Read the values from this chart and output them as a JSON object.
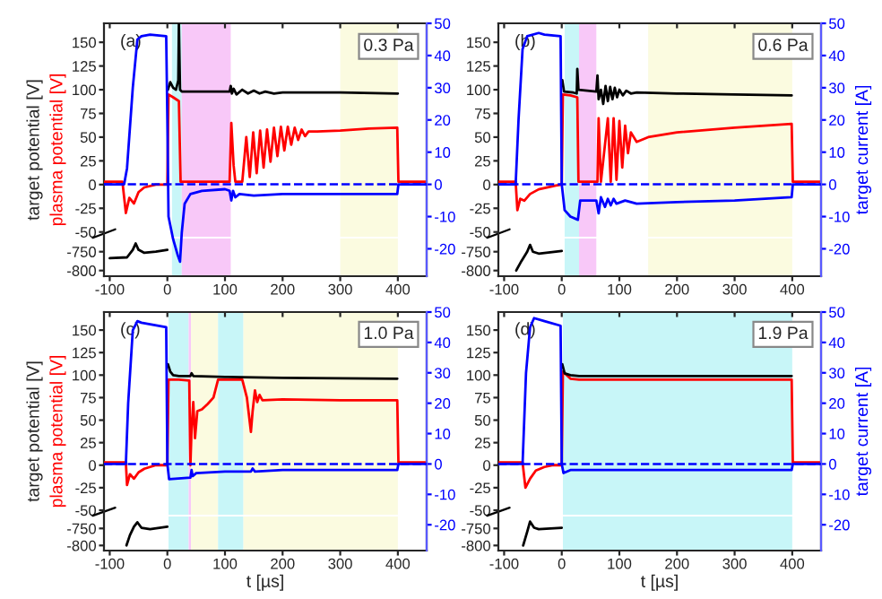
{
  "chart_data": [
    {
      "type": "line",
      "xlim": [
        -110,
        450
      ],
      "xticks": [
        -100,
        0,
        100,
        200,
        300,
        400
      ],
      "ylim": [
        -55,
        170
      ],
      "yticks": [
        -50,
        -25,
        0,
        25,
        50,
        75,
        100,
        125,
        150
      ],
      "y2lim": [
        -28.5,
        50
      ],
      "y2ticks": [
        -20,
        -10,
        0,
        10,
        20,
        30,
        40,
        50
      ],
      "tick_labels": "y",
      "ylabel": "target potential [V]",
      "annotations": [
        "(a)",
        "0.3 Pa",
        "plasma potential [V]"
      ],
      "ref_lines": [
        {
          "axis": "y2",
          "value": 0,
          "color": "#0000ff",
          "line_style": "dashed"
        }
      ],
      "bands": [
        {
          "axis": "x",
          "from": 8,
          "to": 25,
          "color": "#c8f6f8"
        },
        {
          "axis": "x",
          "from": 25,
          "to": 110,
          "color": "#f8c8f8"
        },
        {
          "axis": "x",
          "from": 300,
          "to": 400,
          "color": "#fbfbe0"
        }
      ],
      "series": [
        {
          "color": "#ff0000",
          "x": [
            -110,
            -78,
            -72,
            -66,
            -58,
            -50,
            -40,
            -20,
            0,
            2,
            10,
            20,
            23,
            60,
            108,
            111,
            115,
            118,
            130,
            137,
            143,
            149,
            155,
            161,
            167,
            173,
            179,
            185,
            191,
            197,
            203,
            209,
            215,
            221,
            227,
            233,
            239,
            245,
            260,
            300,
            350,
            399,
            401,
            450
          ],
          "values": [
            3,
            3,
            -30,
            -14,
            -20,
            -8,
            -3,
            0,
            0,
            95,
            92,
            88,
            3,
            3,
            3,
            65,
            20,
            3,
            3,
            50,
            8,
            55,
            12,
            57,
            18,
            58,
            24,
            60,
            30,
            61,
            36,
            61,
            42,
            60,
            47,
            58,
            51,
            56,
            56,
            57,
            59,
            60,
            3,
            3
          ]
        },
        {
          "color": "#000000",
          "x": [
            1,
            5,
            10,
            15,
            19,
            20,
            22,
            25,
            60,
            108,
            110,
            112,
            115,
            120,
            130,
            140,
            150,
            160,
            170,
            185,
            200,
            250,
            300,
            400
          ],
          "values": [
            100,
            108,
            102,
            100,
            110,
            170,
            100,
            98,
            98,
            98,
            104,
            96,
            101,
            95,
            100,
            96,
            99,
            96,
            98,
            96,
            97,
            97,
            97,
            96
          ]
        },
        {
          "color": "#0000ff",
          "axis": "y2",
          "x": [
            -110,
            -75,
            -70,
            -60,
            -52,
            -45,
            -30,
            -2,
            0,
            2,
            10,
            18,
            22,
            25,
            30,
            40,
            60,
            100,
            108,
            111,
            114,
            118,
            125,
            150,
            200,
            300,
            399,
            401,
            450
          ],
          "values": [
            0,
            0,
            5,
            30,
            45,
            46,
            46.5,
            46,
            20,
            -10,
            -17,
            -22,
            -24,
            -15,
            -6,
            -3,
            -2,
            -1.5,
            -2,
            -5,
            -2,
            -4,
            -3,
            -3.5,
            -3,
            -3,
            -3,
            0,
            0
          ]
        }
      ]
    },
    {
      "type": "line",
      "xlim": [
        -110,
        450
      ],
      "xticks": [
        -100,
        0,
        100,
        200,
        300,
        400
      ],
      "ylim": [
        -815,
        -715
      ],
      "yticks": [
        -800,
        -750
      ],
      "bands": [
        {
          "axis": "x",
          "from": 8,
          "to": 25,
          "color": "#c8f6f8"
        },
        {
          "axis": "x",
          "from": 25,
          "to": 110,
          "color": "#f8c8f8"
        },
        {
          "axis": "x",
          "from": 300,
          "to": 400,
          "color": "#fbfbe0"
        }
      ],
      "series": [
        {
          "color": "#000000",
          "x": [
            -100,
            -70,
            -60,
            -55,
            -50,
            -40,
            -20,
            0
          ],
          "values": [
            -767,
            -765,
            -745,
            -728,
            -745,
            -753,
            -750,
            -745
          ]
        }
      ]
    },
    {
      "type": "line",
      "xlim": [
        -110,
        450
      ],
      "xticks": [
        -100,
        0,
        100,
        200,
        300,
        400
      ],
      "ylim": [
        -55,
        170
      ],
      "yticks": [
        -50,
        -25,
        0,
        25,
        50,
        75,
        100,
        125,
        150
      ],
      "y2lim": [
        -28.5,
        50
      ],
      "y2ticks": [
        -20,
        -10,
        0,
        10,
        20,
        30,
        40,
        50
      ],
      "tick_labels": "y",
      "y2label": "target current [A]",
      "annotations": [
        "(b)",
        "0.6 Pa"
      ],
      "ref_lines": [
        {
          "axis": "y2",
          "value": 0,
          "color": "#0000ff",
          "line_style": "dashed"
        }
      ],
      "bands": [
        {
          "axis": "x",
          "from": 5,
          "to": 30,
          "color": "#c8f6f8"
        },
        {
          "axis": "x",
          "from": 30,
          "to": 60,
          "color": "#f8c8f8"
        },
        {
          "axis": "x",
          "from": 150,
          "to": 400,
          "color": "#fbfbe0"
        }
      ],
      "series": [
        {
          "color": "#ff0000",
          "x": [
            -110,
            -80,
            -77,
            -72,
            -65,
            -55,
            -40,
            -10,
            0,
            2,
            15,
            27,
            29,
            62,
            64,
            68,
            80,
            85,
            90,
            95,
            100,
            105,
            110,
            115,
            120,
            130,
            150,
            200,
            300,
            399,
            401,
            450
          ],
          "values": [
            3,
            3,
            -27,
            -15,
            -17,
            -10,
            -5,
            -1,
            0,
            95,
            94,
            92,
            3,
            3,
            70,
            3,
            70,
            3,
            70,
            5,
            67,
            18,
            62,
            33,
            55,
            45,
            50,
            55,
            60,
            64,
            3,
            3
          ]
        },
        {
          "color": "#000000",
          "x": [
            1,
            4,
            20,
            26,
            27,
            29,
            60,
            62,
            64,
            68,
            72,
            76,
            80,
            84,
            88,
            92,
            96,
            100,
            106,
            112,
            120,
            130,
            200,
            300,
            399
          ],
          "values": [
            110,
            98,
            97,
            96,
            122,
            100,
            98,
            115,
            90,
            100,
            85,
            104,
            88,
            103,
            90,
            102,
            92,
            100,
            94,
            99,
            96,
            97,
            96,
            95,
            94
          ]
        },
        {
          "color": "#0000ff",
          "axis": "y2",
          "x": [
            -110,
            -80,
            -75,
            -68,
            -60,
            -40,
            -30,
            -2,
            0,
            5,
            15,
            28,
            32,
            60,
            64,
            68,
            75,
            80,
            85,
            90,
            95,
            110,
            130,
            200,
            300,
            399,
            401,
            450
          ],
          "values": [
            0,
            0,
            20,
            42,
            46,
            47,
            46.5,
            46,
            0,
            -8,
            -10,
            -11,
            -5,
            -5,
            -9,
            -4,
            -7,
            -4.5,
            -6.5,
            -4.5,
            -6,
            -5,
            -6,
            -5.5,
            -5,
            -4,
            0,
            0
          ]
        }
      ]
    },
    {
      "type": "line",
      "xlim": [
        -110,
        450
      ],
      "xticks": [
        -100,
        0,
        100,
        200,
        300,
        400
      ],
      "ylim": [
        -815,
        -715
      ],
      "yticks": [
        -800,
        -750
      ],
      "bands": [
        {
          "axis": "x",
          "from": 5,
          "to": 30,
          "color": "#c8f6f8"
        },
        {
          "axis": "x",
          "from": 30,
          "to": 60,
          "color": "#f8c8f8"
        },
        {
          "axis": "x",
          "from": 150,
          "to": 400,
          "color": "#fbfbe0"
        }
      ],
      "series": [
        {
          "color": "#000000",
          "x": [
            -79,
            -70,
            -60,
            -55,
            -50,
            -40,
            0
          ],
          "values": [
            -800,
            -775,
            -750,
            -732,
            -750,
            -755,
            -748
          ]
        }
      ]
    },
    {
      "type": "line",
      "xlim": [
        -110,
        450
      ],
      "xticks": [
        -100,
        0,
        100,
        200,
        300,
        400
      ],
      "ylim": [
        -55,
        170
      ],
      "yticks": [
        -50,
        -25,
        0,
        25,
        50,
        75,
        100,
        125,
        150
      ],
      "y2lim": [
        -28.5,
        50
      ],
      "y2ticks": [
        -20,
        -10,
        0,
        10,
        20,
        30,
        40,
        50
      ],
      "tick_labels": "y",
      "ylabel": "target potential [V]",
      "annotations": [
        "(c)",
        "1.0 Pa",
        "plasma potential [V]"
      ],
      "ref_lines": [
        {
          "axis": "y2",
          "value": 0,
          "color": "#0000ff",
          "line_style": "dashed"
        }
      ],
      "bands": [
        {
          "axis": "x",
          "from": 2,
          "to": 37,
          "color": "#c8f6f8"
        },
        {
          "axis": "x",
          "from": 37,
          "to": 41,
          "color": "#f8c8f8"
        },
        {
          "axis": "x",
          "from": 41,
          "to": 88,
          "color": "#fbfbe0"
        },
        {
          "axis": "x",
          "from": 88,
          "to": 132,
          "color": "#c8f6f8"
        },
        {
          "axis": "x",
          "from": 132,
          "to": 400,
          "color": "#fbfbe0"
        }
      ],
      "series": [
        {
          "color": "#ff0000",
          "x": [
            -110,
            -72,
            -70,
            -65,
            -58,
            -50,
            -40,
            -20,
            0,
            2,
            20,
            38,
            40,
            42,
            45,
            48,
            52,
            60,
            70,
            80,
            88,
            130,
            138,
            145,
            148,
            152,
            156,
            160,
            165,
            200,
            300,
            399,
            401,
            450
          ],
          "values": [
            3,
            3,
            -22,
            -10,
            -15,
            -8,
            -4,
            0,
            0,
            95,
            95,
            94,
            0,
            40,
            70,
            30,
            60,
            62,
            68,
            75,
            95,
            95,
            75,
            37,
            60,
            83,
            70,
            78,
            72,
            73,
            72,
            72,
            3,
            3
          ]
        },
        {
          "color": "#000000",
          "x": [
            1,
            5,
            10,
            20,
            40,
            42,
            45,
            100,
            200,
            399
          ],
          "values": [
            112,
            104,
            100,
            99,
            99,
            102,
            99,
            98,
            97,
            96
          ]
        },
        {
          "color": "#0000ff",
          "axis": "y2",
          "x": [
            -110,
            -72,
            -68,
            -60,
            -52,
            -45,
            -30,
            -2,
            0,
            3,
            40,
            42,
            44,
            50,
            100,
            145,
            148,
            152,
            200,
            399,
            401,
            450
          ],
          "values": [
            0,
            0,
            20,
            44,
            47,
            46.5,
            46,
            45,
            0,
            -5,
            -4.5,
            -2,
            -4,
            -3,
            -2.5,
            -2.5,
            -1.5,
            -2.5,
            -2,
            -2,
            0,
            0
          ]
        }
      ]
    },
    {
      "type": "line",
      "xlim": [
        -110,
        450
      ],
      "xticks": [
        -100,
        0,
        100,
        200,
        300,
        400
      ],
      "ylim": [
        -815,
        -715
      ],
      "yticks": [
        -800,
        -750
      ],
      "xlabel": "t [µs]",
      "bands": [
        {
          "axis": "x",
          "from": 2,
          "to": 37,
          "color": "#c8f6f8"
        },
        {
          "axis": "x",
          "from": 37,
          "to": 41,
          "color": "#f8c8f8"
        },
        {
          "axis": "x",
          "from": 41,
          "to": 88,
          "color": "#fbfbe0"
        },
        {
          "axis": "x",
          "from": 88,
          "to": 132,
          "color": "#c8f6f8"
        },
        {
          "axis": "x",
          "from": 132,
          "to": 400,
          "color": "#fbfbe0"
        }
      ],
      "series": [
        {
          "color": "#000000",
          "x": [
            -71,
            -65,
            -58,
            -52,
            -45,
            -30,
            0
          ],
          "values": [
            -800,
            -770,
            -745,
            -732,
            -748,
            -752,
            -745
          ]
        }
      ]
    },
    {
      "type": "line",
      "xlim": [
        -110,
        450
      ],
      "xticks": [
        -100,
        0,
        100,
        200,
        300,
        400
      ],
      "ylim": [
        -55,
        170
      ],
      "yticks": [
        -50,
        -25,
        0,
        25,
        50,
        75,
        100,
        125,
        150
      ],
      "y2lim": [
        -28.5,
        50
      ],
      "y2ticks": [
        -20,
        -10,
        0,
        10,
        20,
        30,
        40,
        50
      ],
      "tick_labels": "y",
      "y2label": "target current [A]",
      "annotations": [
        "(d)",
        "1.9 Pa"
      ],
      "ref_lines": [
        {
          "axis": "y2",
          "value": 0,
          "color": "#0000ff",
          "line_style": "dashed"
        }
      ],
      "bands": [
        {
          "axis": "x",
          "from": 2,
          "to": 400,
          "color": "#c8f6f8"
        }
      ],
      "series": [
        {
          "color": "#ff0000",
          "x": [
            -110,
            -68,
            -63,
            -55,
            -45,
            -30,
            -15,
            0,
            2,
            15,
            30,
            399,
            401,
            450
          ],
          "values": [
            3,
            3,
            -25,
            -15,
            -6,
            -2,
            0,
            0,
            104,
            96,
            95,
            95,
            3,
            3
          ]
        },
        {
          "color": "#000000",
          "x": [
            1,
            5,
            15,
            30,
            399
          ],
          "values": [
            112,
            102,
            100,
            99,
            99
          ]
        },
        {
          "color": "#0000ff",
          "axis": "y2",
          "x": [
            -110,
            -68,
            -62,
            -55,
            -48,
            -30,
            -2,
            0,
            3,
            15,
            399,
            401,
            450
          ],
          "values": [
            0,
            0,
            30,
            45,
            48,
            47,
            45.5,
            0,
            -3,
            -2,
            -2,
            0,
            0
          ]
        }
      ]
    },
    {
      "type": "line",
      "xlim": [
        -110,
        450
      ],
      "xticks": [
        -100,
        0,
        100,
        200,
        300,
        400
      ],
      "ylim": [
        -815,
        -715
      ],
      "yticks": [
        -800,
        -750
      ],
      "xlabel": "t [µs]",
      "bands": [
        {
          "axis": "x",
          "from": 2,
          "to": 400,
          "color": "#c8f6f8"
        }
      ],
      "series": [
        {
          "color": "#000000",
          "x": [
            -67,
            -60,
            -55,
            -48,
            -40,
            0
          ],
          "values": [
            -800,
            -760,
            -730,
            -748,
            -752,
            -748
          ]
        }
      ]
    }
  ]
}
